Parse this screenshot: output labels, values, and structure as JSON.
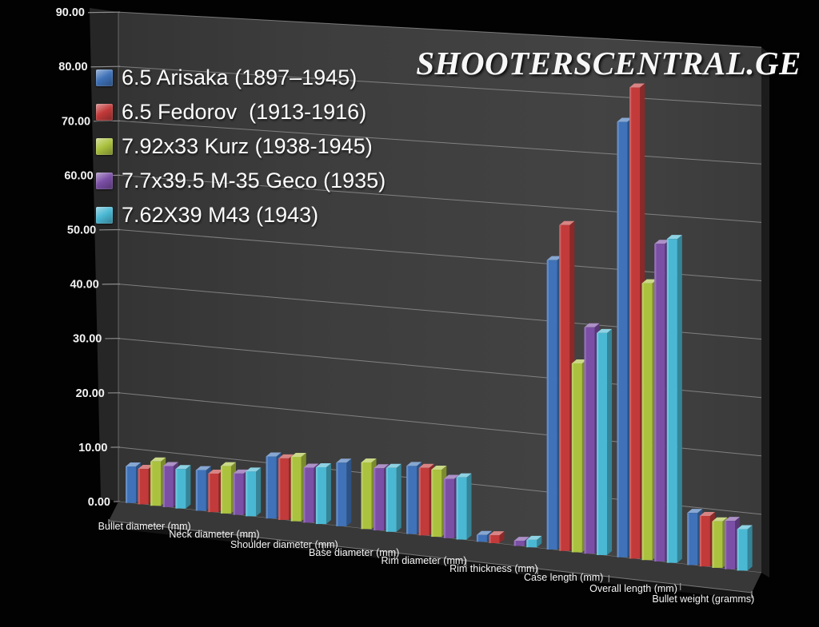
{
  "watermark": "SHOOTERSCENTRAL.GE",
  "colors": {
    "background": "#020202",
    "wall": "#3d3d3d",
    "wall_side": "#262626",
    "floor_top": "#383838",
    "floor_front": "#141414",
    "gridline": "#9b9b9b",
    "axis_text": "#f2f2f2",
    "category_text": "#f5f5f5"
  },
  "chart_data": {
    "type": "bar",
    "projection": "3d-perspective",
    "title": "",
    "xlabel": "",
    "ylabel": "",
    "ylim": [
      0,
      90
    ],
    "ytick_step": 10,
    "ytick_format": "#.00",
    "ytick_labels": [
      "0.00",
      "10.00",
      "20.00",
      "30.00",
      "40.00",
      "50.00",
      "60.00",
      "70.00",
      "80.00",
      "90.00"
    ],
    "grid": true,
    "legend_position": "top-left",
    "categories": [
      "Bullet diameter (mm)",
      "Neck diameter (mm)",
      "Shoulder diameter (mm)",
      "Base diameter (mm)",
      "Rim diameter (mm)",
      "Rim thickness (mm)",
      "Case length (mm)",
      "Overall length (mm)",
      "Bullet weight (gramms)"
    ],
    "series": [
      {
        "name": "6.5 Arisaka (1897–1945)",
        "color": "#3f72b8",
        "values": [
          6.7,
          7.4,
          11.2,
          11.4,
          12.1,
          1.2,
          50.7,
          75.7,
          9.0
        ]
      },
      {
        "name": "6.5 Fedorov  (1913-1916)",
        "color": "#c23a3a",
        "values": [
          6.5,
          7.0,
          11.1,
          null,
          12.0,
          1.4,
          57.0,
          81.8,
          8.7
        ]
      },
      {
        "name": "7.92x33 Kurz (1938-1945)",
        "color": "#abc23f",
        "values": [
          8.1,
          8.6,
          11.6,
          11.9,
          11.9,
          null,
          33.0,
          48.0,
          8.0
        ]
      },
      {
        "name": "7.7x39.5 M-35 Geco (1935)",
        "color": "#7b4fa6",
        "values": [
          7.5,
          7.5,
          9.9,
          11.1,
          10.5,
          0.9,
          39.5,
          55.0,
          8.3
        ]
      },
      {
        "name": "7.62X39 M43 (1943)",
        "color": "#4ab8d3",
        "values": [
          7.2,
          8.1,
          10.2,
          11.4,
          11.0,
          1.3,
          38.7,
          56.0,
          7.1
        ]
      }
    ]
  }
}
